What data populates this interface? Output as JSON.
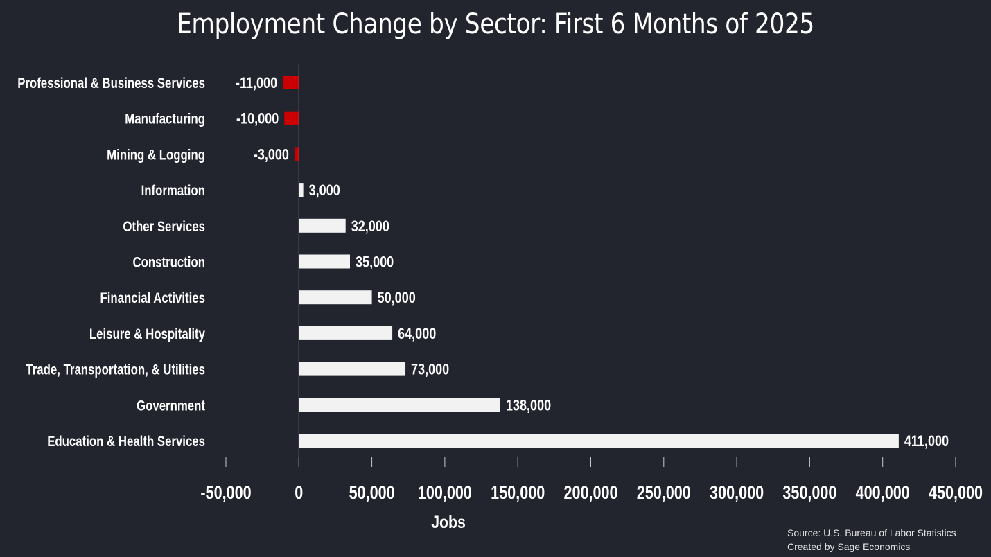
{
  "chart_data": {
    "type": "bar",
    "orientation": "horizontal",
    "title": "Employment Change by Sector: First 6 Months of 2025",
    "categories": [
      "Professional & Business Services",
      "Manufacturing",
      "Mining & Logging",
      "Information",
      "Other Services",
      "Construction",
      "Financial Activities",
      "Leisure & Hospitality",
      "Trade, Transportation, & Utilities",
      "Government",
      "Education & Health Services"
    ],
    "values": [
      -11000,
      -10000,
      -3000,
      3000,
      32000,
      35000,
      50000,
      64000,
      73000,
      138000,
      411000
    ],
    "value_labels": [
      "-11,000",
      "-10,000",
      "-3,000",
      "3,000",
      "32,000",
      "35,000",
      "50,000",
      "64,000",
      "73,000",
      "138,000",
      "411,000"
    ],
    "xlabel": "Jobs",
    "xlim": [
      -50000,
      450000
    ],
    "xticks": [
      -50000,
      0,
      50000,
      100000,
      150000,
      200000,
      250000,
      300000,
      350000,
      400000,
      450000
    ],
    "xtick_labels": [
      "-50,000",
      "0",
      "50,000",
      "100,000",
      "150,000",
      "200,000",
      "250,000",
      "300,000",
      "350,000",
      "400,000",
      "450,000"
    ],
    "grid": false,
    "colors": {
      "positive": "#f2f2f2",
      "negative": "#cc0000",
      "background": "#22252e",
      "text": "#ffffff"
    }
  },
  "source": {
    "line1": "Source: U.S. Bureau of Labor Statistics",
    "line2": "Created by Sage Economics"
  }
}
